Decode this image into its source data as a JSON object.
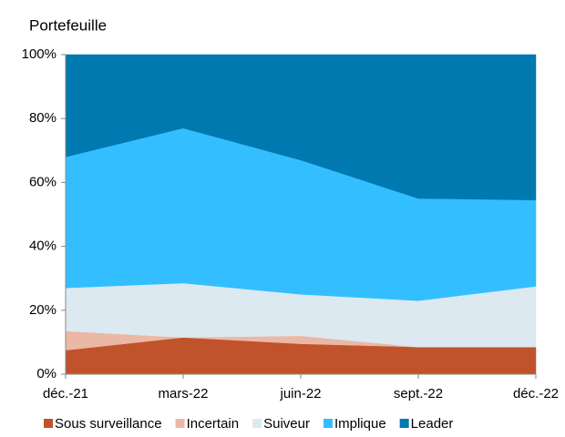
{
  "chart_data": {
    "type": "stacked_area",
    "title": "Portefeuille",
    "categories": [
      "déc.-21",
      "mars-22",
      "juin-22",
      "sept.-22",
      "déc.-22"
    ],
    "series": [
      {
        "name": "Sous surveillance",
        "color": "#c0532b",
        "values": [
          7.5,
          11.5,
          9.5,
          8.5,
          8.5
        ]
      },
      {
        "name": "Incertain",
        "color": "#eab8a4",
        "values": [
          6,
          0,
          2.5,
          0,
          0
        ]
      },
      {
        "name": "Suiveur",
        "color": "#dce9f0",
        "values": [
          13.5,
          17,
          13,
          14.5,
          19
        ]
      },
      {
        "name": "Implique",
        "color": "#33bfff",
        "values": [
          41,
          48.5,
          42,
          32,
          27
        ]
      },
      {
        "name": "Leader",
        "color": "#0078b0",
        "values": [
          32,
          23,
          33,
          45,
          45.5
        ]
      }
    ],
    "ylim": [
      0,
      100
    ],
    "yticks": [
      {
        "value": 0,
        "label": "0%"
      },
      {
        "value": 20,
        "label": "20%"
      },
      {
        "value": 40,
        "label": "40%"
      },
      {
        "value": 60,
        "label": "60%"
      },
      {
        "value": 80,
        "label": "80%"
      },
      {
        "value": 100,
        "label": "100%"
      }
    ]
  }
}
